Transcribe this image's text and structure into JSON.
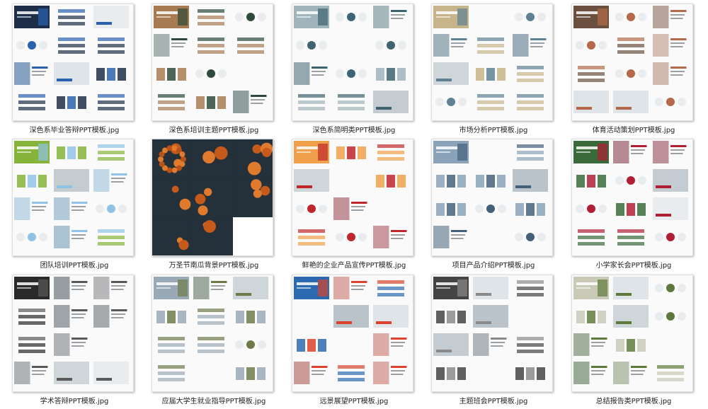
{
  "files": [
    {
      "name": "深色系毕业答辩PPT模板.jpg",
      "scheme": "bluegrid",
      "accent": "#2a62b0",
      "accent2": "#1e2e48",
      "dark": false
    },
    {
      "name": "深色系培训主题PPT模板.jpg",
      "scheme": "green",
      "accent": "#2f4a3b",
      "accent2": "#a87a52",
      "dark": false
    },
    {
      "name": "深色系简明类PPT模板.jpg",
      "scheme": "teal",
      "accent": "#3d6470",
      "accent2": "#9fb4bb",
      "dark": false
    },
    {
      "name": "市场分析PPT模板.jpg",
      "scheme": "slate",
      "accent": "#5e8294",
      "accent2": "#c8b48a",
      "dark": false
    },
    {
      "name": "体育活动策划PPT模板.jpg",
      "scheme": "orange",
      "accent": "#b3694a",
      "accent2": "#6b5040",
      "dark": false
    },
    {
      "name": "团队培训PPT模板.jpg",
      "scheme": "lightblue",
      "accent": "#8fc3e6",
      "accent2": "#86b33a",
      "dark": false
    },
    {
      "name": "万圣节南瓜背景PPT模板.jpg",
      "scheme": "pumpkin",
      "accent": "#d56a1e",
      "accent2": "#1f2b33",
      "dark": true
    },
    {
      "name": "鲜艳的企业产品宣传PPT模板.jpg",
      "scheme": "red",
      "accent": "#c0272d",
      "accent2": "#f0a04a",
      "dark": false
    },
    {
      "name": "项目产品介绍PPT模板.jpg",
      "scheme": "navy",
      "accent": "#45607a",
      "accent2": "#8aa3b8",
      "dark": false
    },
    {
      "name": "小学家长会PPT模板.jpg",
      "scheme": "crimson",
      "accent": "#b11f35",
      "accent2": "#3a6a3a",
      "dark": false
    },
    {
      "name": "学术答辩PPT模板.jpg",
      "scheme": "gray",
      "accent": "#5a5a5a",
      "accent2": "#2a2a2a",
      "dark": false
    },
    {
      "name": "应届大学生就业指导PPT模板.jpg",
      "scheme": "olive",
      "accent": "#6e7a4a",
      "accent2": "#9aa9b6",
      "dark": false
    },
    {
      "name": "远景展望PPT模板.jpg",
      "scheme": "redblue",
      "accent": "#d9432b",
      "accent2": "#2b6ab0",
      "dark": false
    },
    {
      "name": "主题班会PPT模板.jpg",
      "scheme": "silver",
      "accent": "#8a8a8a",
      "accent2": "#444444",
      "dark": false
    },
    {
      "name": "总结报告类PPT模板.jpg",
      "scheme": "forest",
      "accent": "#5e7a3a",
      "accent2": "#c9c9b8",
      "dark": false
    }
  ]
}
